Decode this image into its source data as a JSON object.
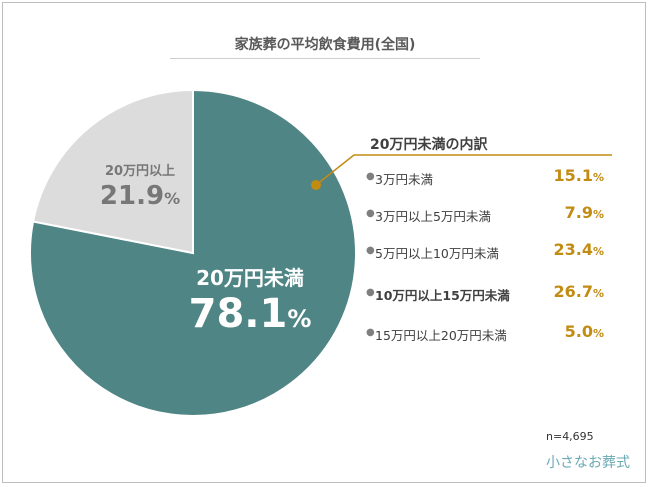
{
  "title": "家族葬の平均飲食費用(全国)",
  "chart_data": {
    "type": "pie",
    "slices": [
      {
        "label": "20万円未満",
        "value": 78.1,
        "color": "#4f8585"
      },
      {
        "label": "20万円以上",
        "value": 21.9,
        "color": "#dcdcdc"
      }
    ]
  },
  "pie_labels": {
    "small": {
      "name": "20万円以上",
      "value": "21.9",
      "unit": "%"
    },
    "big": {
      "name": "20万円未満",
      "value": "78.1",
      "unit": "%"
    }
  },
  "breakdown": {
    "title": "20万円未満の内訳",
    "unit": "%",
    "rows": [
      {
        "label": "3万円未満",
        "value": "15.1",
        "bold": false
      },
      {
        "label": "3万円以上5万円未満",
        "value": "7.9",
        "bold": false
      },
      {
        "label": "5万円以上10万円未満",
        "value": "23.4",
        "bold": false
      },
      {
        "label": "10万円以上15万円未満",
        "value": "26.7",
        "bold": true
      },
      {
        "label": "15万円以上20万円未満",
        "value": "5.0",
        "bold": false
      }
    ]
  },
  "colors": {
    "accent": "#c28b12",
    "teal": "#4f8585",
    "gray": "#dcdcdc"
  },
  "note": "n=4,695",
  "logo": "小さなお葬式"
}
